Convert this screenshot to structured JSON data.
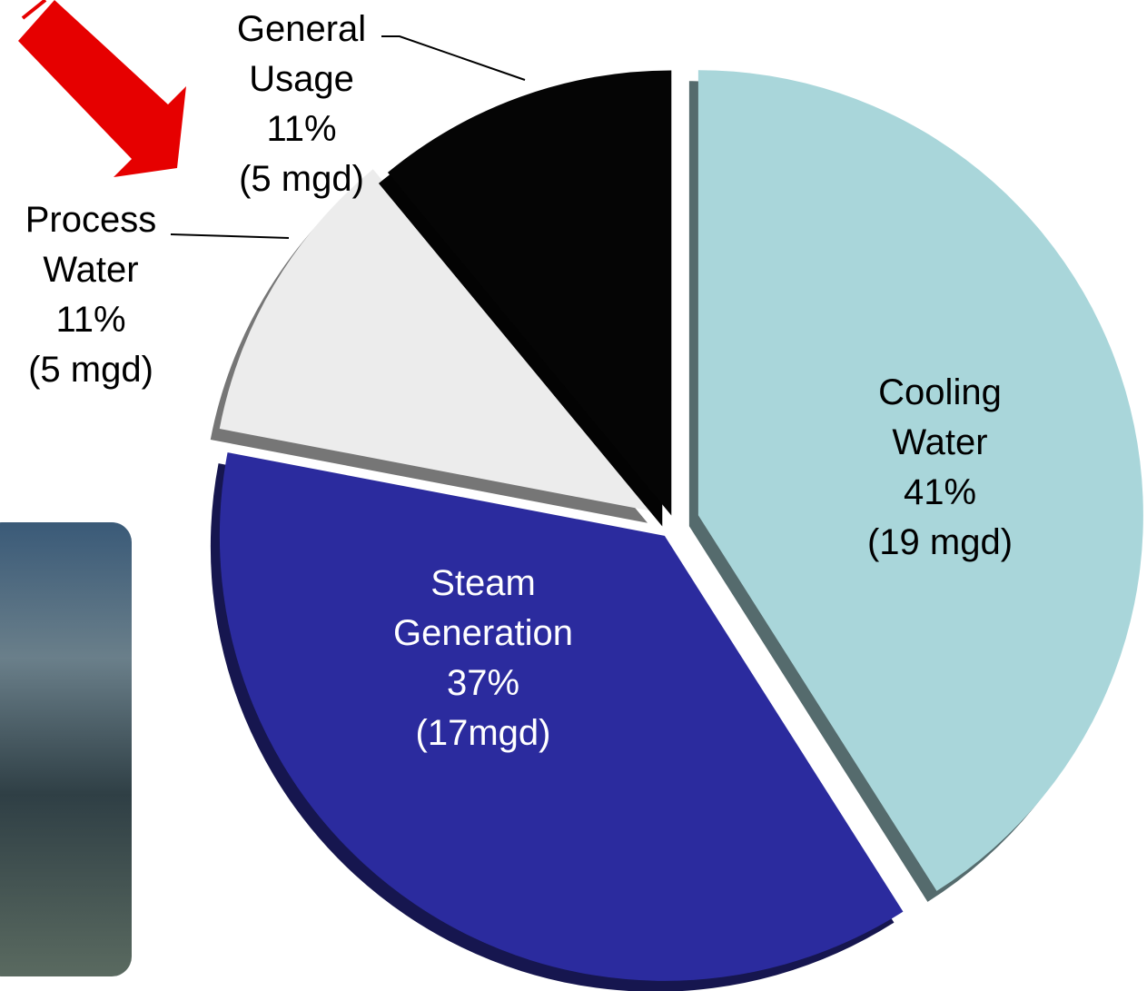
{
  "chart_data": {
    "type": "pie",
    "categories": [
      "Cooling Water",
      "Steam Generation",
      "Process Water",
      "General Usage"
    ],
    "values": [
      41,
      37,
      11,
      11
    ],
    "value_labels": [
      "41%",
      "37%",
      "11%",
      "11%"
    ],
    "volume_labels": [
      "(19 mgd)",
      "(17mgd)",
      "(5 mgd)",
      "(5 mgd)"
    ],
    "colors": [
      "#a9d6da",
      "#2b2b9e",
      "#ececec",
      "#050505"
    ]
  }
}
